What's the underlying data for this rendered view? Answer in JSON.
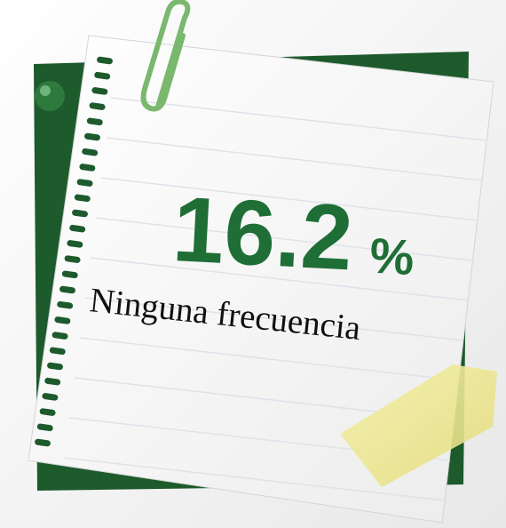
{
  "stat": {
    "value": 16.2,
    "unit": "%",
    "label": "Ninguna frecuencia"
  }
}
